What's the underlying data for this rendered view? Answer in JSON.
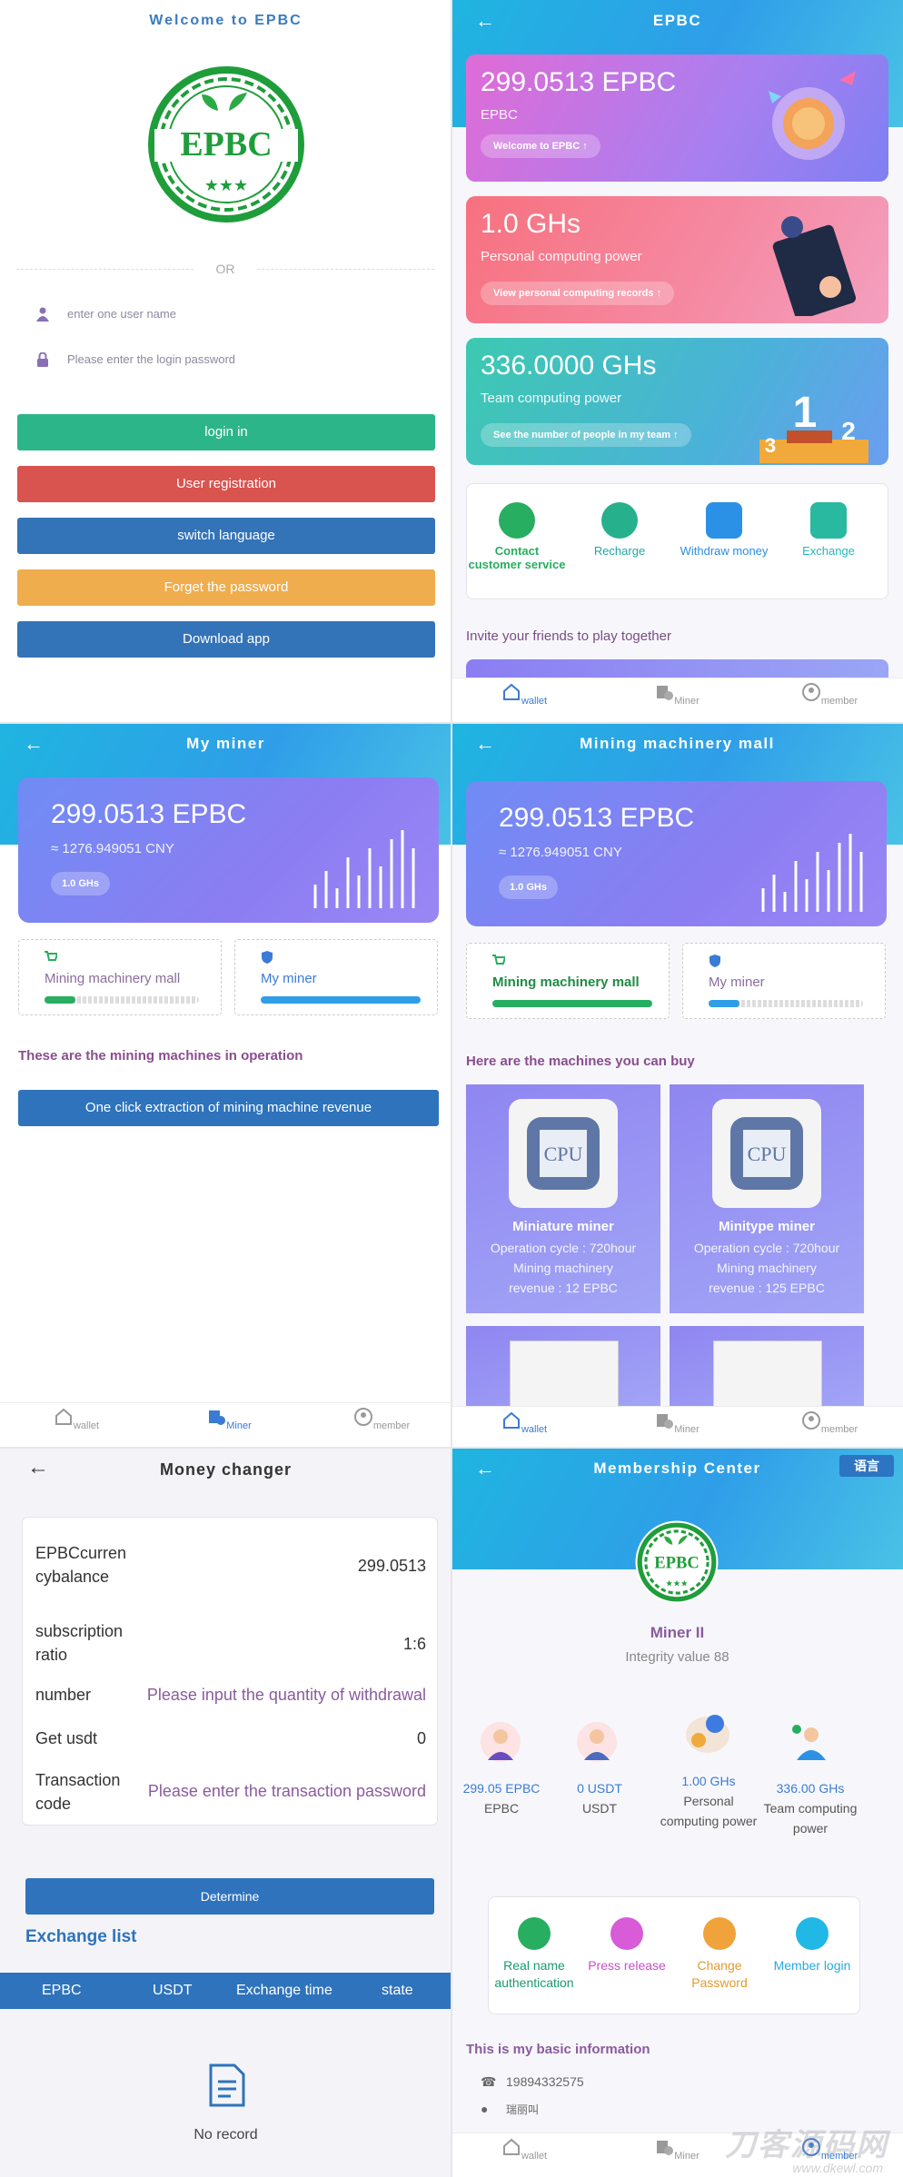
{
  "login": {
    "title": "Welcome to EPBC",
    "or": "OR",
    "username_placeholder": "enter one user name",
    "password_placeholder": "Please enter the login password",
    "btn_login": "login in",
    "btn_register": "User registration",
    "btn_language": "switch language",
    "btn_forget": "Forget the password",
    "btn_download": "Download app",
    "colors": {
      "login": "#2db58a",
      "register": "#d9534f",
      "language": "#3373b8",
      "forget": "#efad4d",
      "download": "#3373b8"
    }
  },
  "wallet": {
    "title": "EPBC",
    "balance": "299.0513 EPBC",
    "balance_sub": "EPBC",
    "balance_pill": "Welcome to EPBC",
    "personal": "1.0 GHs",
    "personal_sub": "Personal computing power",
    "personal_pill": "View personal computing records",
    "team": "336.0000 GHs",
    "team_sub": "Team computing power",
    "team_pill": "See the number of people in my team",
    "quick": [
      {
        "label": "Contact customer service",
        "color": "#27ae60",
        "text_color": "#27ae60"
      },
      {
        "label": "Recharge",
        "color": "#26b08c",
        "text_color": "#26a6a6"
      },
      {
        "label": "Withdraw money",
        "color": "#2a91e6",
        "text_color": "#2a8ee6"
      },
      {
        "label": "Exchange",
        "color": "#28b9a0",
        "text_color": "#2ab5c0"
      }
    ],
    "invite": "Invite your friends to play together"
  },
  "tabs": {
    "wallet": "wallet",
    "miner": "Miner",
    "member": "member"
  },
  "myminer": {
    "title": "My miner",
    "balance": "299.0513 EPBC",
    "cny": "≈ 1276.949051 CNY",
    "pill": "1.0 GHs",
    "tab_mall": "Mining machinery mall",
    "tab_miner": "My miner",
    "section": "These are the mining machines in operation",
    "extract_btn": "One click extraction of mining machine revenue"
  },
  "mall": {
    "title": "Mining machinery mall",
    "balance": "299.0513 EPBC",
    "cny": "≈ 1276.949051 CNY",
    "pill": "1.0 GHs",
    "tab_mall": "Mining machinery mall",
    "tab_miner": "My miner",
    "section": "Here are the machines you can buy",
    "products": [
      {
        "name": "Miniature miner",
        "cycle": "Operation cycle : 720hour",
        "rev_label": "Mining machinery",
        "revenue": "revenue : 12 EPBC",
        "chip": "CPU"
      },
      {
        "name": "Minitype miner",
        "cycle": "Operation cycle : 720hour",
        "rev_label": "Mining machinery",
        "revenue": "revenue : 125 EPBC",
        "chip": "CPU"
      }
    ]
  },
  "changer": {
    "title": "Money changer",
    "rows": [
      {
        "label": "EPBCcurren cybalance",
        "value": "299.0513"
      },
      {
        "label": "subscription ratio",
        "value": "1:6"
      },
      {
        "label": "number",
        "value": "Please input the quantity of withdrawal"
      },
      {
        "label": "Get usdt",
        "value": "0"
      },
      {
        "label": "Transaction code",
        "value": "Please enter the transaction password"
      }
    ],
    "determine": "Determine",
    "exchange_list": "Exchange list",
    "columns": [
      "EPBC",
      "USDT",
      "Exchange time",
      "state"
    ],
    "empty": "No record"
  },
  "member": {
    "title": "Membership Center",
    "lang": "语言",
    "level": "Miner II",
    "integrity": "Integrity value 88",
    "stats": [
      {
        "value": "299.05 EPBC",
        "label": "EPBC"
      },
      {
        "value": "0 USDT",
        "label": "USDT"
      },
      {
        "value": "1.00 GHs",
        "label": "Personal computing power"
      },
      {
        "value": "336.00 GHs",
        "label": "Team computing power"
      }
    ],
    "actions": [
      {
        "label": "Real name authentication",
        "color": "#27ae60",
        "text_color": "#1a9a70"
      },
      {
        "label": "Press release",
        "color": "#d85bd8",
        "text_color": "#c84fc8"
      },
      {
        "label": "Change Password",
        "color": "#f0a23b",
        "text_color": "#e39a2e"
      },
      {
        "label": "Member login",
        "color": "#22b8e6",
        "text_color": "#2aa8e0"
      }
    ],
    "info_title": "This is my basic information",
    "phone": "19894332575",
    "name_partial": "瑞丽叫"
  },
  "watermark": {
    "main": "刀客源码网",
    "sub": "www.dkewl.com"
  }
}
